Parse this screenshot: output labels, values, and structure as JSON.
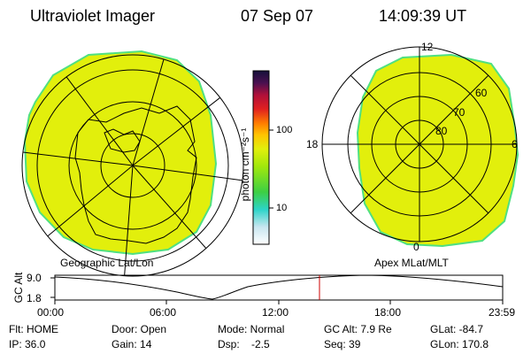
{
  "header": {
    "title": "Ultraviolet Imager",
    "date": "07 Sep 07",
    "time": "14:09:39 UT"
  },
  "colors": {
    "aurora_fill": "#e2ef0c",
    "aurora_edge": "#4fe081"
  },
  "colorbar": {
    "ticks": [
      "100",
      "10"
    ],
    "unit_label": "photon cm⁻²s⁻¹"
  },
  "left_map": {
    "label": "Geographic Lat/Lon"
  },
  "right_map": {
    "label": "Apex MLat/MLT",
    "lat_labels": [
      "60",
      "70",
      "80"
    ],
    "mlt_labels": [
      "12",
      "18",
      "6",
      "0"
    ]
  },
  "altitude_plot": {
    "axis_label": "GC Alt",
    "y_ticks": [
      "9.0",
      "1.8"
    ],
    "x_ticks": [
      "00:00",
      "06:00",
      "12:00",
      "18:00",
      "23:59"
    ]
  },
  "info": {
    "flt": "Flt: HOME",
    "ip": "IP: 36.0",
    "door": "Door: Open",
    "gain": "Gain: 14",
    "mode": "Mode: Normal",
    "dsp": "Dsp:    -2.5",
    "gc_alt": "GC Alt: 7.9 Re",
    "seq": "Seq: 39",
    "glat": "GLat: -84.7",
    "glon": "GLon: 170.8"
  }
}
